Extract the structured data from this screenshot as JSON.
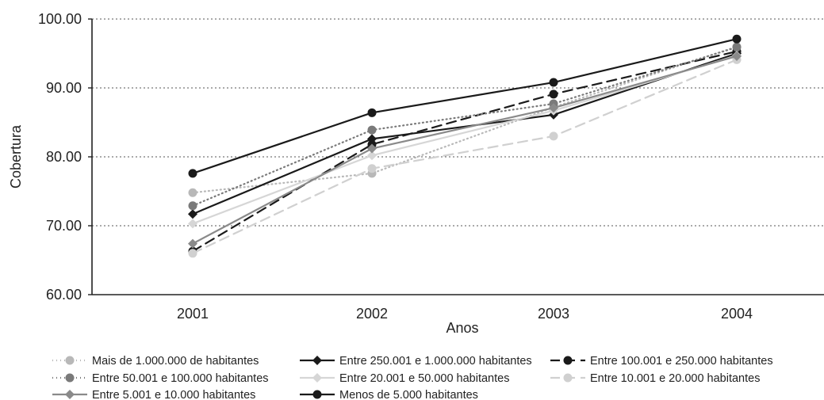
{
  "chart_data": {
    "type": "line",
    "categories": [
      "2001",
      "2002",
      "2003",
      "2004"
    ],
    "xlabel": "Anos",
    "ylabel": "Cobertura",
    "ylim": [
      60,
      100
    ],
    "yticks": [
      "60.00",
      "70.00",
      "80.00",
      "90.00",
      "100.00"
    ],
    "grid": "horizontal dotted",
    "legend_position": "bottom",
    "series": [
      {
        "name": "Mais de 1.000.000 de habitantes",
        "values": [
          74.8,
          77.6,
          87.2,
          96.0
        ],
        "color": "#b8b8b8",
        "dash": "dotted",
        "marker": "circle"
      },
      {
        "name": "Entre 250.001 e 1.000.000 habitantes",
        "values": [
          71.7,
          82.6,
          86.1,
          95.0
        ],
        "color": "#1a1a1a",
        "dash": "solid",
        "marker": "diamond"
      },
      {
        "name": "Entre 100.001 e 250.000 habitantes",
        "values": [
          66.3,
          81.8,
          89.1,
          95.3
        ],
        "color": "#1a1a1a",
        "dash": "dashed",
        "marker": "circle"
      },
      {
        "name": "Entre 50.001 e 100.000 habitantes",
        "values": [
          72.9,
          83.9,
          87.7,
          95.9
        ],
        "color": "#7a7a7a",
        "dash": "dotted",
        "marker": "circle"
      },
      {
        "name": "Entre 20.001 e 50.000 habitantes",
        "values": [
          70.3,
          80.2,
          86.7,
          94.7
        ],
        "color": "#d6d6d6",
        "dash": "solid",
        "marker": "diamond"
      },
      {
        "name": "Entre 10.001 e 20.000 habitantes",
        "values": [
          66.0,
          78.3,
          83.0,
          94.1
        ],
        "color": "#d0d0d0",
        "dash": "dashed",
        "marker": "circle"
      },
      {
        "name": "Entre 5.001 e 10.000 habitantes",
        "values": [
          67.4,
          81.2,
          87.1,
          94.6
        ],
        "color": "#8a8a8a",
        "dash": "solid",
        "marker": "diamond"
      },
      {
        "name": "Menos de 5.000 habitantes",
        "values": [
          77.6,
          86.4,
          90.8,
          97.1
        ],
        "color": "#1a1a1a",
        "dash": "solid",
        "marker": "circle"
      }
    ]
  }
}
